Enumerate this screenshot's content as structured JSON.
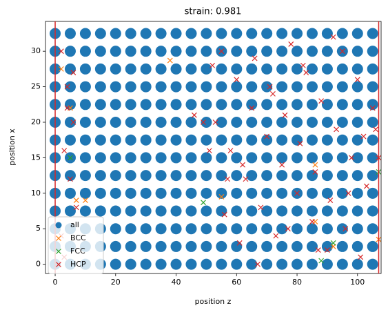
{
  "chart_data": {
    "type": "scatter",
    "title": "strain: 0.981",
    "xlabel": "position z",
    "ylabel": "position x",
    "xlim": [
      -3.2,
      107.8
    ],
    "ylim": [
      -1.3,
      34.2
    ],
    "xticks": [
      0,
      20,
      40,
      60,
      80,
      100
    ],
    "yticks": [
      0,
      5,
      10,
      15,
      20,
      25,
      30
    ],
    "vlines": [
      0,
      107
    ],
    "vline_color": "#d62728",
    "legend": "lower left",
    "series": [
      {
        "name": "all",
        "color": "#1f77b4",
        "marker": "o",
        "x": [
          0,
          5,
          10,
          15,
          20,
          25,
          30,
          35,
          40,
          45,
          50,
          55,
          60,
          65,
          70,
          75,
          80,
          85,
          90,
          95,
          100,
          105,
          0,
          5,
          10,
          15,
          20,
          25,
          30,
          35,
          40,
          45,
          50,
          55,
          60,
          65,
          70,
          75,
          80,
          85,
          90,
          95,
          100,
          105,
          0,
          5,
          10,
          15,
          20,
          25,
          30,
          35,
          40,
          45,
          50,
          55,
          60,
          65,
          70,
          75,
          80,
          85,
          90,
          95,
          100,
          105,
          0,
          5,
          10,
          15,
          20,
          25,
          30,
          35,
          40,
          45,
          50,
          55,
          60,
          65,
          70,
          75,
          80,
          85,
          90,
          95,
          100,
          105,
          0,
          5,
          10,
          15,
          20,
          25,
          30,
          35,
          40,
          45,
          50,
          55,
          60,
          65,
          70,
          75,
          80,
          85,
          90,
          95,
          100,
          105,
          0,
          5,
          10,
          15,
          20,
          25,
          30,
          35,
          40,
          45,
          50,
          55,
          60,
          65,
          70,
          75,
          80,
          85,
          90,
          95,
          100,
          105,
          0,
          5,
          10,
          15,
          20,
          25,
          30,
          35,
          40,
          45,
          50,
          55,
          60,
          65,
          70,
          75,
          80,
          85,
          90,
          95,
          100,
          105,
          0,
          5,
          10,
          15,
          20,
          25,
          30,
          35,
          40,
          45,
          50,
          55,
          60,
          65,
          70,
          75,
          80,
          85,
          90,
          95,
          100,
          105,
          0,
          5,
          10,
          15,
          20,
          25,
          30,
          35,
          40,
          45,
          50,
          55,
          60,
          65,
          70,
          75,
          80,
          85,
          90,
          95,
          100,
          105,
          0,
          5,
          10,
          15,
          20,
          25,
          30,
          35,
          40,
          45,
          50,
          55,
          60,
          65,
          70,
          75,
          80,
          85,
          90,
          95,
          100,
          105,
          0,
          5,
          10,
          15,
          20,
          25,
          30,
          35,
          40,
          45,
          50,
          55,
          60,
          65,
          70,
          75,
          80,
          85,
          90,
          95,
          100,
          105,
          0,
          5,
          10,
          15,
          20,
          25,
          30,
          35,
          40,
          45,
          50,
          55,
          60,
          65,
          70,
          75,
          80,
          85,
          90,
          95,
          100,
          105,
          0,
          5,
          10,
          15,
          20,
          25,
          30,
          35,
          40,
          45,
          50,
          55,
          60,
          65,
          70,
          75,
          80,
          85,
          90,
          95,
          100,
          105,
          0,
          5,
          10,
          15,
          20,
          25,
          30,
          35,
          40,
          45,
          50,
          55,
          60,
          65,
          70,
          75,
          80,
          85,
          90,
          95,
          100,
          105
        ],
        "values": [
          0,
          0,
          0,
          0,
          0,
          0,
          0,
          0,
          0,
          0,
          0,
          0,
          0,
          0,
          0,
          0,
          0,
          0,
          0,
          0,
          0,
          0,
          2.5,
          2.5,
          2.5,
          2.5,
          2.5,
          2.5,
          2.5,
          2.5,
          2.5,
          2.5,
          2.5,
          2.5,
          2.5,
          2.5,
          2.5,
          2.5,
          2.5,
          2.5,
          2.5,
          2.5,
          2.5,
          2.5,
          5,
          5,
          5,
          5,
          5,
          5,
          5,
          5,
          5,
          5,
          5,
          5,
          5,
          5,
          5,
          5,
          5,
          5,
          5,
          5,
          5,
          5,
          7.5,
          7.5,
          7.5,
          7.5,
          7.5,
          7.5,
          7.5,
          7.5,
          7.5,
          7.5,
          7.5,
          7.5,
          7.5,
          7.5,
          7.5,
          7.5,
          7.5,
          7.5,
          7.5,
          7.5,
          7.5,
          7.5,
          10,
          10,
          10,
          10,
          10,
          10,
          10,
          10,
          10,
          10,
          10,
          10,
          10,
          10,
          10,
          10,
          10,
          10,
          10,
          10,
          10,
          10,
          12.5,
          12.5,
          12.5,
          12.5,
          12.5,
          12.5,
          12.5,
          12.5,
          12.5,
          12.5,
          12.5,
          12.5,
          12.5,
          12.5,
          12.5,
          12.5,
          12.5,
          12.5,
          12.5,
          12.5,
          12.5,
          12.5,
          15,
          15,
          15,
          15,
          15,
          15,
          15,
          15,
          15,
          15,
          15,
          15,
          15,
          15,
          15,
          15,
          15,
          15,
          15,
          15,
          15,
          15,
          17.5,
          17.5,
          17.5,
          17.5,
          17.5,
          17.5,
          17.5,
          17.5,
          17.5,
          17.5,
          17.5,
          17.5,
          17.5,
          17.5,
          17.5,
          17.5,
          17.5,
          17.5,
          17.5,
          17.5,
          17.5,
          17.5,
          20,
          20,
          20,
          20,
          20,
          20,
          20,
          20,
          20,
          20,
          20,
          20,
          20,
          20,
          20,
          20,
          20,
          20,
          20,
          20,
          20,
          20,
          22.5,
          22.5,
          22.5,
          22.5,
          22.5,
          22.5,
          22.5,
          22.5,
          22.5,
          22.5,
          22.5,
          22.5,
          22.5,
          22.5,
          22.5,
          22.5,
          22.5,
          22.5,
          22.5,
          22.5,
          22.5,
          22.5,
          25,
          25,
          25,
          25,
          25,
          25,
          25,
          25,
          25,
          25,
          25,
          25,
          25,
          25,
          25,
          25,
          25,
          25,
          25,
          25,
          25,
          25,
          27.5,
          27.5,
          27.5,
          27.5,
          27.5,
          27.5,
          27.5,
          27.5,
          27.5,
          27.5,
          27.5,
          27.5,
          27.5,
          27.5,
          27.5,
          27.5,
          27.5,
          27.5,
          27.5,
          27.5,
          27.5,
          27.5,
          30,
          30,
          30,
          30,
          30,
          30,
          30,
          30,
          30,
          30,
          30,
          30,
          30,
          30,
          30,
          30,
          30,
          30,
          30,
          30,
          30,
          30,
          32.5,
          32.5,
          32.5,
          32.5,
          32.5,
          32.5,
          32.5,
          32.5,
          32.5,
          32.5,
          32.5,
          32.5,
          32.5,
          32.5,
          32.5,
          32.5,
          32.5,
          32.5,
          32.5,
          32.5,
          32.5,
          32.5
        ]
      },
      {
        "name": "BCC",
        "color": "#ff7f0e",
        "marker": "x",
        "x": [
          38,
          2,
          5,
          10,
          7,
          86,
          92,
          107,
          55,
          86
        ],
        "values": [
          28.7,
          27.5,
          22,
          9,
          9,
          14,
          2.5,
          3.5,
          9.5,
          6
        ]
      },
      {
        "name": "FCC",
        "color": "#2ca02c",
        "marker": "x",
        "x": [
          49,
          5,
          107,
          88,
          92
        ],
        "values": [
          8.7,
          15,
          13,
          0.5,
          3
        ]
      },
      {
        "name": "HCP",
        "color": "#d62728",
        "marker": "x",
        "x": [
          2,
          4,
          6,
          3,
          5,
          7,
          2,
          6,
          4,
          3,
          52,
          55,
          60,
          65,
          70,
          75,
          80,
          85,
          90,
          95,
          100,
          105,
          53,
          58,
          63,
          68,
          73,
          78,
          83,
          88,
          93,
          98,
          103,
          56,
          61,
          66,
          71,
          76,
          81,
          86,
          91,
          96,
          101,
          106,
          46,
          49,
          51,
          62,
          72,
          82,
          92,
          102,
          57,
          67,
          77,
          87,
          97,
          107
        ],
        "values": [
          30,
          25,
          20,
          16,
          12,
          8,
          4,
          27,
          22,
          1,
          28,
          30,
          26,
          22,
          18,
          14,
          10,
          6,
          2,
          30,
          26,
          22,
          20,
          16,
          12,
          8,
          4,
          31,
          27,
          23,
          19,
          15,
          11,
          7,
          3,
          29,
          25,
          21,
          17,
          13,
          9,
          5,
          1,
          19,
          21,
          20,
          16,
          14,
          24,
          28,
          32,
          18,
          12,
          0,
          5,
          2,
          10,
          15
        ]
      }
    ]
  }
}
